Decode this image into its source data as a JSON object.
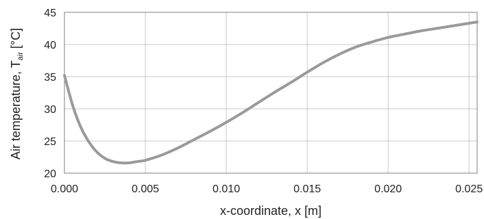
{
  "chart_data": {
    "type": "line",
    "title": "",
    "xlabel": "x-coordinate, x [m]",
    "ylabel_main": "Air temperature, T",
    "ylabel_sub": "air",
    "ylabel_unit": " [°C]",
    "xlim": [
      0,
      0.0255
    ],
    "ylim": [
      20,
      45
    ],
    "xticks": [
      0.0,
      0.005,
      0.01,
      0.015,
      0.02,
      0.025
    ],
    "xtick_labels": [
      "0.000",
      "0.005",
      "0.010",
      "0.015",
      "0.020",
      "0.025"
    ],
    "yticks": [
      20,
      25,
      30,
      35,
      40,
      45
    ],
    "ytick_labels": [
      "20",
      "25",
      "30",
      "35",
      "40",
      "45"
    ],
    "grid": true,
    "legend": "none",
    "series": [
      {
        "color": "#9a9a9a",
        "x": [
          0.0,
          0.0005,
          0.001,
          0.0015,
          0.002,
          0.0025,
          0.003,
          0.0035,
          0.004,
          0.0045,
          0.005,
          0.006,
          0.007,
          0.008,
          0.009,
          0.01,
          0.011,
          0.012,
          0.013,
          0.014,
          0.015,
          0.016,
          0.017,
          0.018,
          0.019,
          0.02,
          0.021,
          0.022,
          0.023,
          0.024,
          0.0255
        ],
        "y": [
          35.2,
          30.6,
          27.2,
          24.9,
          23.3,
          22.3,
          21.8,
          21.6,
          21.6,
          21.8,
          22.0,
          22.8,
          23.9,
          25.2,
          26.5,
          27.9,
          29.4,
          31.0,
          32.6,
          34.1,
          35.7,
          37.2,
          38.5,
          39.6,
          40.4,
          41.1,
          41.6,
          42.1,
          42.5,
          42.9,
          43.5
        ]
      }
    ]
  }
}
